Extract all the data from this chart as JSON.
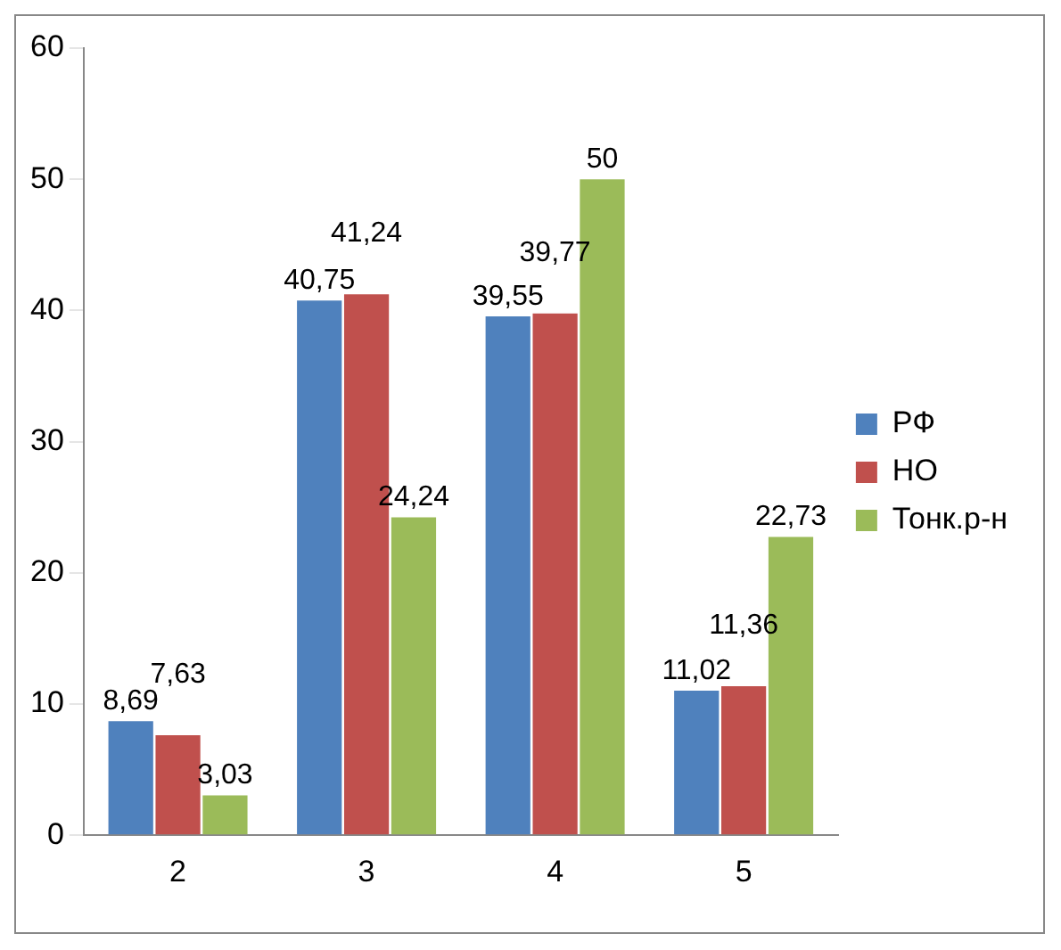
{
  "chart_data": {
    "type": "bar",
    "categories": [
      "2",
      "3",
      "4",
      "5"
    ],
    "series": [
      {
        "name": "РФ",
        "color": "#4f81bd",
        "values": [
          8.69,
          40.75,
          39.55,
          11.02
        ],
        "value_labels": [
          "8,69",
          "40,75",
          "39,55",
          "11,02"
        ]
      },
      {
        "name": "НО",
        "color": "#c0504d",
        "values": [
          7.63,
          41.24,
          39.77,
          11.36
        ],
        "value_labels": [
          "7,63",
          "41,24",
          "39,77",
          "11,36"
        ]
      },
      {
        "name": "Тонк.р-н",
        "color": "#9bbb59",
        "values": [
          3.03,
          24.24,
          50,
          22.73
        ],
        "value_labels": [
          "3,03",
          "24,24",
          "50",
          "22,73"
        ]
      }
    ],
    "ylim": [
      0,
      60
    ],
    "yticks": [
      0,
      10,
      20,
      30,
      40,
      50,
      60
    ],
    "grid": false,
    "legend": "right"
  }
}
